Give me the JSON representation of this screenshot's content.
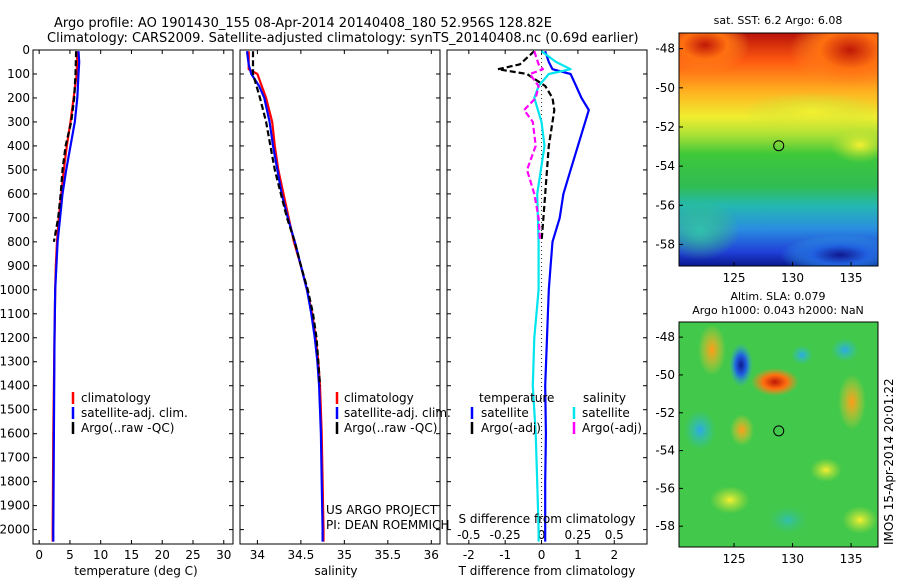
{
  "header": {
    "line1": "Argo profile: AO 1901430_155 08-Apr-2014 20140408_180 52.956S 128.82E",
    "line2": "Climatology: CARS2009. Satellite-adjusted climatology: synTS_20140408.nc (0.69d earlier)"
  },
  "credit": {
    "project": "US ARGO PROJECT",
    "pi": "PI: DEAN ROEMMICH",
    "stamp": "IMOS 15-Apr-2014 20:01:22"
  },
  "colors": {
    "climatology": "#ff0000",
    "satellite": "#0000ff",
    "argo": "#000000",
    "satellite_s": "#00e5ee",
    "argo_s": "#ff00ff"
  },
  "chart_data": [
    {
      "type": "line",
      "xlabel": "temperature (deg C)",
      "ylabel": "",
      "xlim": [
        -1,
        31.5
      ],
      "ylim": [
        2060,
        0
      ],
      "x_ticks": [
        0,
        5,
        10,
        15,
        20,
        25,
        30
      ],
      "y_ticks": [
        0,
        100,
        200,
        300,
        400,
        500,
        600,
        700,
        800,
        900,
        1000,
        1100,
        1200,
        1300,
        1400,
        1500,
        1600,
        1700,
        1800,
        1900,
        2000
      ],
      "legend": [
        "climatology",
        "satellite-adj. clim.",
        "Argo(..raw -QC)"
      ],
      "series": [
        {
          "name": "climatology",
          "depth": [
            5,
            100,
            200,
            300,
            400,
            500,
            600,
            700,
            800,
            900,
            1000,
            1200,
            1400,
            1600,
            1800,
            2000,
            2050
          ],
          "values": [
            6.2,
            6.1,
            5.6,
            5.1,
            4.5,
            4.0,
            3.6,
            3.2,
            2.9,
            2.7,
            2.6,
            2.5,
            2.4,
            2.3,
            2.25,
            2.2,
            2.2
          ]
        },
        {
          "name": "satellite-adj. clim.",
          "depth": [
            5,
            50,
            100,
            150,
            200,
            300,
            400,
            500,
            600,
            700,
            800,
            900,
            1000,
            1200,
            1400,
            1600,
            1800,
            2000,
            2050
          ],
          "values": [
            6.4,
            6.5,
            6.4,
            6.3,
            6.2,
            5.8,
            5.1,
            4.4,
            3.8,
            3.4,
            3.0,
            2.8,
            2.6,
            2.5,
            2.45,
            2.4,
            2.35,
            2.3,
            2.3
          ]
        },
        {
          "name": "Argo(..raw -QC)",
          "depth": [
            5,
            100,
            200,
            300,
            400,
            500,
            600,
            700,
            800
          ],
          "values": [
            6.0,
            5.9,
            5.7,
            5.2,
            4.3,
            3.8,
            3.5,
            3.1,
            2.4
          ]
        }
      ]
    },
    {
      "type": "line",
      "xlabel": "salinity",
      "ylabel": "",
      "xlim": [
        33.8,
        36.1
      ],
      "ylim": [
        2060,
        0
      ],
      "x_ticks": [
        34,
        34.5,
        35,
        35.5,
        36
      ],
      "legend": [
        "climatology",
        "satellite-adj. clim.",
        "Argo(..raw -QC)"
      ],
      "series": [
        {
          "name": "climatology",
          "depth": [
            5,
            80,
            100,
            200,
            300,
            400,
            500,
            600,
            700,
            800,
            900,
            1000,
            1100,
            1200,
            1300,
            1400,
            1600,
            1800,
            2000,
            2050
          ],
          "values": [
            33.9,
            33.9,
            34.0,
            34.1,
            34.17,
            34.2,
            34.24,
            34.3,
            34.36,
            34.42,
            34.5,
            34.57,
            34.63,
            34.67,
            34.7,
            34.72,
            34.74,
            34.75,
            34.76,
            34.76
          ]
        },
        {
          "name": "satellite-adj. clim.",
          "depth": [
            5,
            60,
            100,
            150,
            200,
            300,
            400,
            500,
            600,
            700,
            800,
            900,
            1000,
            1100,
            1200,
            1300,
            1400,
            1600,
            1800,
            2000,
            2050
          ],
          "values": [
            33.88,
            33.9,
            33.93,
            34.02,
            34.08,
            34.14,
            34.18,
            34.23,
            34.28,
            34.35,
            34.43,
            34.5,
            34.57,
            34.62,
            34.66,
            34.69,
            34.71,
            34.73,
            34.74,
            34.75,
            34.75
          ]
        },
        {
          "name": "Argo(..raw -QC)",
          "depth": [
            5,
            100,
            200,
            300,
            400,
            500,
            600,
            700,
            800,
            900,
            1000,
            1100,
            1200,
            1300,
            1400
          ],
          "values": [
            33.95,
            33.95,
            34.03,
            34.1,
            34.15,
            34.2,
            34.27,
            34.34,
            34.43,
            34.5,
            34.58,
            34.64,
            34.68,
            34.7,
            34.72
          ]
        }
      ]
    },
    {
      "type": "line",
      "xlabel": "T difference from climatology",
      "x2label": "S difference from climatology",
      "xlim": [
        -2.6,
        2.9
      ],
      "ylim": [
        2060,
        0
      ],
      "x_ticks": [
        -2,
        -1,
        0,
        1,
        2
      ],
      "x2_tick_labels": [
        "-0.5",
        "-0.25",
        "0",
        "0.25",
        "0.5"
      ],
      "legend_headers": [
        "temperature",
        "salinity"
      ],
      "legend": [
        "satellite",
        "Argo(-adj)",
        "satellite",
        "Argo(-adj)"
      ],
      "series": [
        {
          "name": "satellite",
          "depth": [
            5,
            50,
            80,
            100,
            150,
            200,
            250,
            300,
            400,
            500,
            600,
            700,
            800,
            900,
            1000,
            1200,
            1400,
            1600,
            1800,
            2000,
            2050
          ],
          "values": [
            0.1,
            0.2,
            0.3,
            0.8,
            0.95,
            1.1,
            1.3,
            1.2,
            1.0,
            0.8,
            0.6,
            0.5,
            0.3,
            0.25,
            0.2,
            0.15,
            0.1,
            0.12,
            0.1,
            0.1,
            0.1
          ]
        },
        {
          "name": "Argo(-adj)",
          "depth": [
            5,
            60,
            80,
            100,
            150,
            200,
            250,
            300,
            400,
            500,
            600,
            700,
            800
          ],
          "values": [
            -0.2,
            -0.6,
            -1.2,
            -0.4,
            0.1,
            0.3,
            0.35,
            0.3,
            0.2,
            0.15,
            0.1,
            0.05,
            0.0
          ]
        },
        {
          "name": "satellite",
          "depth": [
            5,
            50,
            80,
            100,
            150,
            200,
            300,
            400,
            600,
            800,
            1000,
            1200,
            1400,
            1600,
            1800,
            2000,
            2050
          ],
          "values": [
            0.0,
            0.1,
            0.2,
            0.05,
            -0.02,
            -0.05,
            0.0,
            0.02,
            -0.03,
            -0.02,
            -0.02,
            -0.05,
            -0.06,
            -0.04,
            -0.03,
            -0.02,
            -0.02
          ]
        },
        {
          "name": "Argo(-adj)",
          "depth": [
            5,
            60,
            80,
            100,
            150,
            200,
            250,
            300,
            400,
            500,
            600,
            700,
            800
          ],
          "values": [
            -0.05,
            -0.02,
            0.01,
            -0.08,
            -0.02,
            -0.04,
            -0.12,
            -0.06,
            -0.04,
            -0.1,
            -0.05,
            -0.02,
            -0.01
          ]
        }
      ]
    },
    {
      "type": "heatmap",
      "title": "sat. SST: 6.2 Argo: 6.08",
      "xlim": [
        120.3,
        137.3
      ],
      "ylim": [
        -59.1,
        -47.2
      ],
      "x_ticks": [
        125,
        130,
        135
      ],
      "y_ticks": [
        -48,
        -50,
        -52,
        -54,
        -56,
        -58
      ],
      "marker": {
        "lon": 128.82,
        "lat": -52.956
      }
    },
    {
      "type": "heatmap",
      "title": "Altim. SLA: 0.079",
      "subtitle": "Argo h1000: 0.043 h2000: NaN",
      "xlim": [
        120.3,
        137.3
      ],
      "ylim": [
        -59.1,
        -47.2
      ],
      "x_ticks": [
        125,
        130,
        135
      ],
      "y_ticks": [
        -48,
        -50,
        -52,
        -54,
        -56,
        -58
      ],
      "marker": {
        "lon": 128.82,
        "lat": -52.956
      }
    }
  ]
}
